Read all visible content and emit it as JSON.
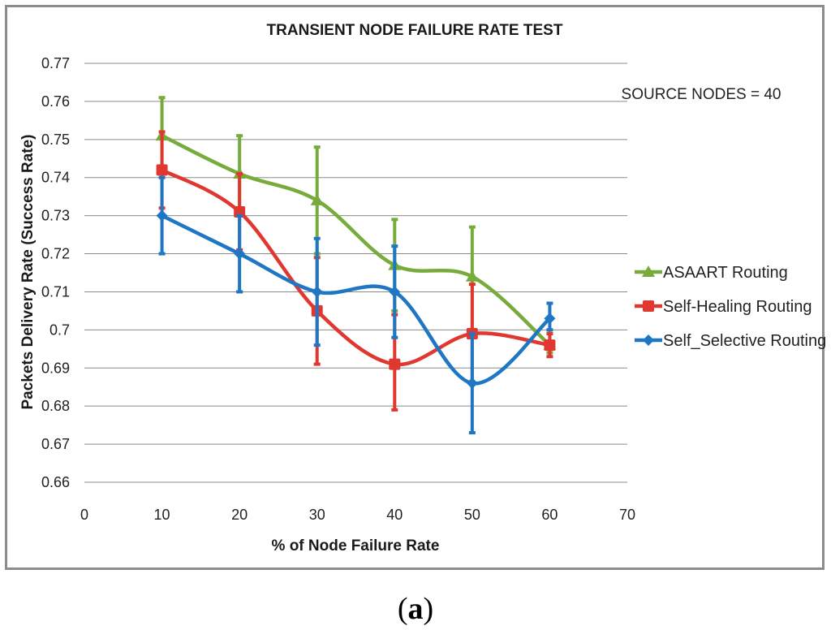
{
  "chart_data": {
    "type": "line",
    "title": "TRANSIENT NODE FAILURE  RATE TEST",
    "xlabel": "% of Node Failure Rate",
    "ylabel": "Packets Delivery Rate (Success Rate)",
    "xlim": [
      0,
      70
    ],
    "ylim": [
      0.66,
      0.77
    ],
    "x_ticks": [
      "0",
      "10",
      "20",
      "30",
      "40",
      "50",
      "60",
      "70"
    ],
    "y_ticks": [
      "0.66",
      "0.67",
      "0.68",
      "0.69",
      "0.7",
      "0.71",
      "0.72",
      "0.73",
      "0.74",
      "0.75",
      "0.76",
      "0.77"
    ],
    "grid": "horizontal",
    "legend_position": "right",
    "annotation": "SOURCE NODES = 40",
    "x": [
      10,
      20,
      30,
      40,
      50,
      60
    ],
    "series": [
      {
        "name": "ASAART Routing",
        "marker": "triangle",
        "color": "#77ab3b",
        "values": [
          0.751,
          0.741,
          0.734,
          0.717,
          0.714,
          0.696
        ],
        "err_low": [
          0.741,
          0.731,
          0.72,
          0.705,
          0.7,
          0.694
        ],
        "err_high": [
          0.761,
          0.751,
          0.748,
          0.729,
          0.727,
          0.7
        ]
      },
      {
        "name": "Self-Healing Routing",
        "marker": "square",
        "color": "#e03830",
        "values": [
          0.742,
          0.731,
          0.705,
          0.691,
          0.699,
          0.696
        ],
        "err_low": [
          0.732,
          0.721,
          0.691,
          0.679,
          0.686,
          0.693
        ],
        "err_high": [
          0.752,
          0.741,
          0.719,
          0.704,
          0.712,
          0.699
        ]
      },
      {
        "name": "Self_Selective Routing",
        "marker": "diamond",
        "color": "#1f77c4",
        "values": [
          0.73,
          0.72,
          0.71,
          0.71,
          0.686,
          0.703
        ],
        "err_low": [
          0.72,
          0.71,
          0.696,
          0.698,
          0.673,
          0.7
        ],
        "err_high": [
          0.74,
          0.73,
          0.724,
          0.722,
          0.699,
          0.707
        ]
      }
    ]
  },
  "caption": {
    "open": "(",
    "letter": "a",
    "close": ")"
  }
}
